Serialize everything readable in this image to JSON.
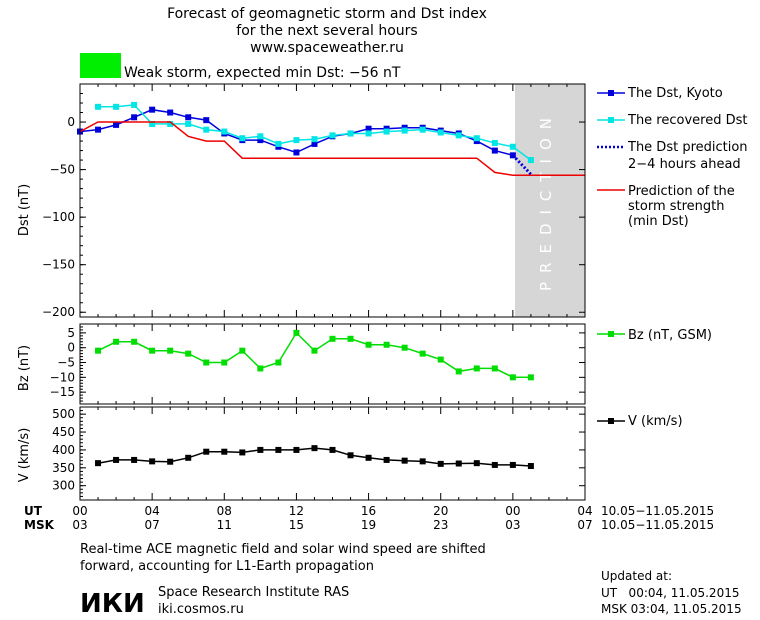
{
  "header": {
    "title_lines": [
      "Forecast of geomagnetic storm and Dst index",
      "for the next several hours",
      "www.spaceweather.ru"
    ],
    "storm_text": "Weak storm, expected min Dst: −56 nT",
    "storm_color": "#00ee00"
  },
  "prediction_label": "PREDICTION",
  "legend": {
    "dst_kyoto": "The Dst, Kyoto",
    "dst_recovered": "The recovered Dst",
    "dst_prediction": [
      "The Dst prediction",
      "2−4 hours ahead"
    ],
    "storm_strength": [
      "Prediction of the",
      "storm strength",
      "(min Dst)"
    ],
    "bz": "Bz (nT, GSM)",
    "v": "V (km/s)"
  },
  "time_axis": {
    "ut_label": "UT",
    "msk_label": "MSK",
    "ut_ticks": [
      "00",
      "04",
      "08",
      "12",
      "16",
      "20",
      "00",
      "04"
    ],
    "msk_ticks": [
      "03",
      "07",
      "11",
      "15",
      "19",
      "23",
      "03",
      "07"
    ],
    "date_range_ut": "10.05−11.05.2015",
    "date_range_msk": "10.05−11.05.2015"
  },
  "footer": {
    "note_lines": [
      "Real-time ACE magnetic field and solar wind speed are shifted",
      "forward, accounting for L1-Earth propagation"
    ],
    "institute": "Space Research Institute RAS",
    "website": "iki.cosmos.ru",
    "logo": "ИКИ",
    "updated_label": "Updated at:",
    "updated_ut": "UT   00:04, 11.05.2015",
    "updated_msk": "MSK 03:04, 11.05.2015"
  },
  "chart_data": [
    {
      "type": "line",
      "name": "dst",
      "ylabel": "Dst (nT)",
      "xlim": [
        0,
        28
      ],
      "ylim": [
        -205,
        40
      ],
      "yticks": [
        0,
        -50,
        -100,
        -150,
        -200
      ],
      "prediction_region": [
        24,
        28
      ],
      "series": [
        {
          "name": "The Dst, Kyoto",
          "color": "#0000dd",
          "x": [
            0,
            1,
            2,
            3,
            4,
            5,
            6,
            7,
            8,
            9,
            10,
            11,
            12,
            13,
            14,
            15,
            16,
            17,
            18,
            19,
            20,
            21,
            22,
            23,
            24
          ],
          "y": [
            -10,
            -8,
            -3,
            5,
            13,
            10,
            5,
            2,
            -12,
            -19,
            -19,
            -26,
            -32,
            -23,
            -15,
            -12,
            -7,
            -7,
            -6,
            -6,
            -9,
            -12,
            -20,
            -30,
            -35
          ]
        },
        {
          "name": "The recovered Dst",
          "color": "#00e5e5",
          "x": [
            1,
            2,
            3,
            4,
            5,
            6,
            7,
            8,
            9,
            10,
            11,
            12,
            13,
            14,
            15,
            16,
            17,
            18,
            19,
            20,
            21,
            22,
            23,
            24,
            25
          ],
          "y": [
            16,
            16,
            18,
            -2,
            -2,
            -2,
            -8,
            -10,
            -17,
            -15,
            -23,
            -19,
            -18,
            -14,
            -12,
            -12,
            -10,
            -9,
            -8,
            -11,
            -14,
            -17,
            -22,
            -26,
            -40
          ]
        },
        {
          "name": "The Dst prediction",
          "color": "#0000dd",
          "x": [
            24,
            25
          ],
          "y": [
            -35,
            -55
          ]
        },
        {
          "name": "Prediction of the storm strength",
          "color": "#ee0000",
          "x": [
            0,
            1,
            2,
            3,
            4,
            5,
            6,
            7,
            8,
            9,
            10,
            11,
            12,
            13,
            14,
            15,
            16,
            17,
            18,
            19,
            20,
            21,
            22,
            23,
            24,
            25,
            26,
            27,
            28
          ],
          "y": [
            -10,
            0,
            0,
            0,
            0,
            0,
            -15,
            -20,
            -20,
            -38,
            -38,
            -38,
            -38,
            -38,
            -38,
            -38,
            -38,
            -38,
            -38,
            -38,
            -38,
            -38,
            -38,
            -53,
            -56,
            -56,
            -56,
            -56,
            -56
          ]
        }
      ]
    },
    {
      "type": "line",
      "name": "bz",
      "ylabel": "Bz (nT)",
      "xlim": [
        0,
        28
      ],
      "ylim": [
        -19,
        8
      ],
      "yticks": [
        5,
        0,
        -5,
        -10,
        -15
      ],
      "series": [
        {
          "name": "Bz (nT, GSM)",
          "color": "#00dd00",
          "x": [
            1,
            2,
            3,
            4,
            5,
            6,
            7,
            8,
            9,
            10,
            11,
            12,
            13,
            14,
            15,
            16,
            17,
            18,
            19,
            20,
            21,
            22,
            23,
            24,
            25
          ],
          "y": [
            -1,
            2,
            2,
            -1,
            -1,
            -2,
            -5,
            -5,
            -1,
            -7,
            -5,
            5,
            -1,
            3,
            3,
            1,
            1,
            0,
            -2,
            -4,
            -8,
            -7,
            -7,
            -10,
            -10
          ]
        }
      ]
    },
    {
      "type": "line",
      "name": "v",
      "ylabel": "V (km/s)",
      "xlim": [
        0,
        28
      ],
      "ylim": [
        260,
        520
      ],
      "yticks": [
        500,
        450,
        400,
        350,
        300
      ],
      "series": [
        {
          "name": "V (km/s)",
          "color": "#000000",
          "x": [
            1,
            2,
            3,
            4,
            5,
            6,
            7,
            8,
            9,
            10,
            11,
            12,
            13,
            14,
            15,
            16,
            17,
            18,
            19,
            20,
            21,
            22,
            23,
            24,
            25
          ],
          "y": [
            363,
            372,
            372,
            368,
            367,
            378,
            395,
            395,
            393,
            400,
            400,
            400,
            405,
            400,
            385,
            378,
            372,
            370,
            368,
            361,
            362,
            363,
            358,
            358,
            355
          ]
        }
      ]
    }
  ]
}
